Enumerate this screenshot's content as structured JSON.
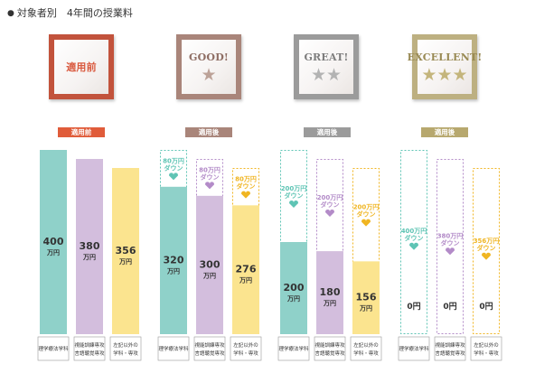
{
  "title": "対象者別　4年間の授業料",
  "title_bullet": "●",
  "colors": {
    "teal": "#8fd1c9",
    "purple": "#d3bedd",
    "yellow": "#fbe48f",
    "teal_line": "#5ec4b4",
    "purple_line": "#b38bc8",
    "yellow_line": "#f0b522"
  },
  "badges": [
    {
      "label": "適用前",
      "stars": 0,
      "color": "#c2533c",
      "text_color": "#d9593e",
      "star_color": "#cccccc"
    },
    {
      "label": "GOOD!",
      "stars": 1,
      "color": "#a9857a",
      "text_color": "#8e6d63",
      "star_color": "#bca298"
    },
    {
      "label": "GREAT!",
      "stars": 2,
      "color": "#9b9b9b",
      "text_color": "#7d7d7d",
      "star_color": "#b3b3b3"
    },
    {
      "label": "EXCELLENT!",
      "stars": 3,
      "color": "#bdb081",
      "text_color": "#998a54",
      "star_color": "#c4b57c"
    }
  ],
  "tags": [
    {
      "label": "適用前",
      "color": "#e05c3a"
    },
    {
      "label": "適用後",
      "color": "#a9857a"
    },
    {
      "label": "適用後",
      "color": "#9b9b9b"
    },
    {
      "label": "適用後",
      "color": "#b7a86e"
    }
  ],
  "chart_data": {
    "type": "bar",
    "unit": "万円",
    "categories": [
      "理学療法学科",
      "視能訓練専攻 言語聴覚専攻",
      "左記以外の 学科・専攻"
    ],
    "groups": [
      {
        "group": "適用前",
        "values": [
          400,
          380,
          356
        ],
        "reductions": [
          null,
          null,
          null
        ]
      },
      {
        "group": "GOOD!",
        "values": [
          320,
          300,
          276
        ],
        "reductions": [
          "80万円 ダウン",
          "80万円 ダウン",
          "80万円 ダウン"
        ]
      },
      {
        "group": "GREAT!",
        "values": [
          200,
          180,
          156
        ],
        "reductions": [
          "200万円 ダウン",
          "200万円 ダウン",
          "200万円 ダウン"
        ]
      },
      {
        "group": "EXCELLENT!",
        "values": [
          0,
          0,
          0
        ],
        "reductions": [
          "400万円 ダウン",
          "380万円 ダウン",
          "356万円 ダウン"
        ]
      }
    ],
    "value_labels": [
      [
        "400",
        "380",
        "356"
      ],
      [
        "320",
        "300",
        "276"
      ],
      [
        "200",
        "180",
        "156"
      ],
      [
        "0円",
        "0円",
        "0円"
      ]
    ],
    "ylim": [
      0,
      400
    ]
  }
}
